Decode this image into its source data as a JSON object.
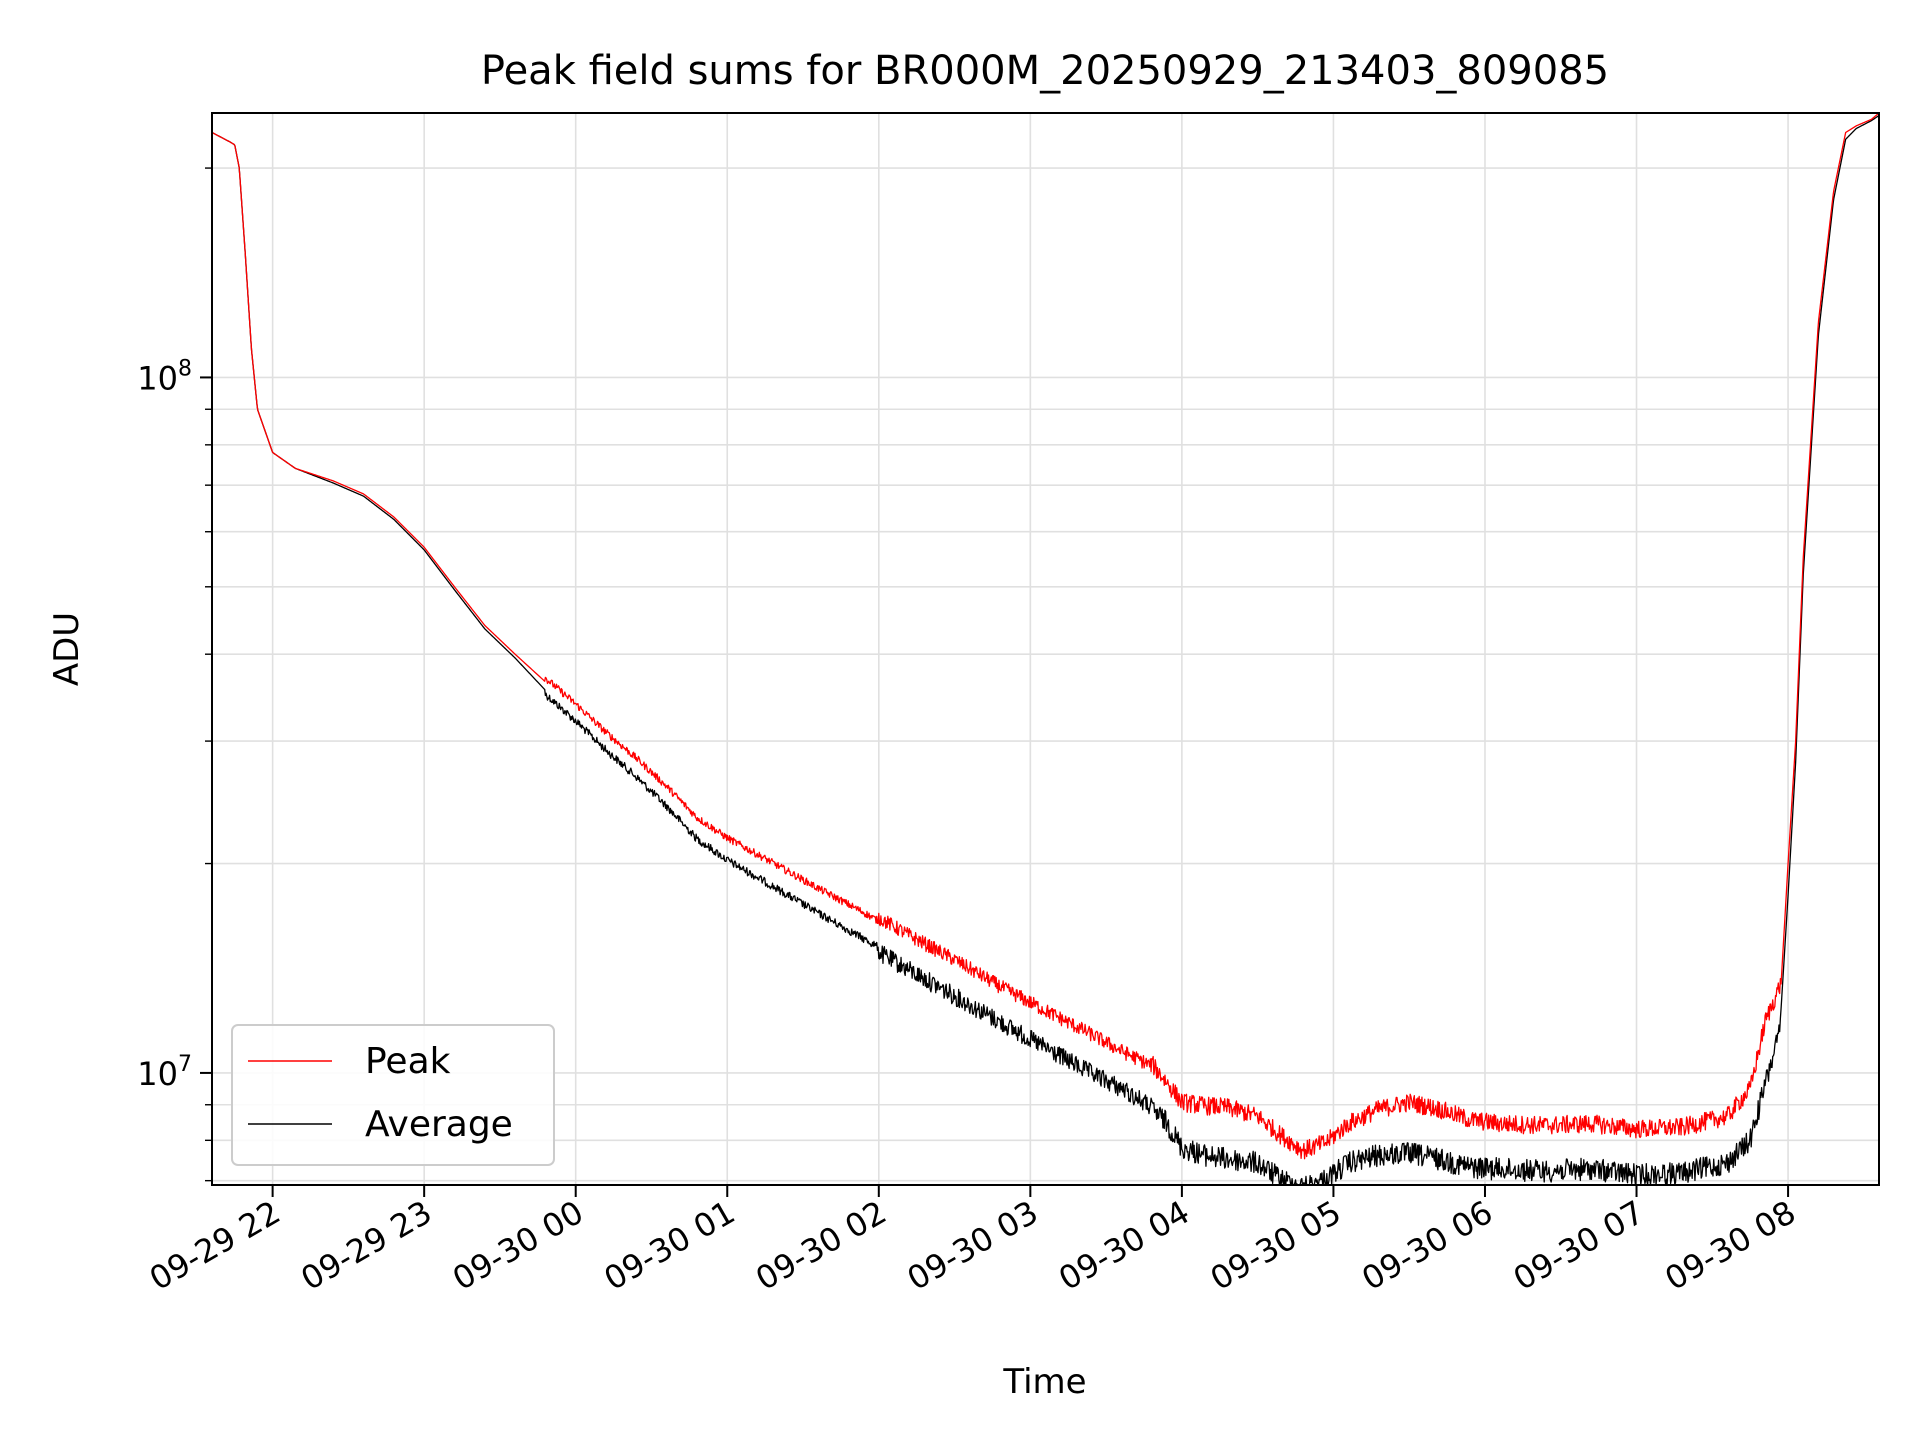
{
  "chart_data": {
    "type": "line",
    "title": "Peak field sums for BR000M_20250929_213403_809085",
    "xlabel": "Time",
    "ylabel": "ADU",
    "yscale": "log",
    "ylim": [
      6900000,
      240000000
    ],
    "xlim_hours": [
      -0.4,
      10.6
    ],
    "grid": true,
    "legend_position": "lower-left",
    "x_ticks": [
      {
        "hour": 0,
        "label": "09-29 22"
      },
      {
        "hour": 1,
        "label": "09-29 23"
      },
      {
        "hour": 2,
        "label": "09-30 00"
      },
      {
        "hour": 3,
        "label": "09-30 01"
      },
      {
        "hour": 4,
        "label": "09-30 02"
      },
      {
        "hour": 5,
        "label": "09-30 03"
      },
      {
        "hour": 6,
        "label": "09-30 04"
      },
      {
        "hour": 7,
        "label": "09-30 05"
      },
      {
        "hour": 8,
        "label": "09-30 06"
      },
      {
        "hour": 9,
        "label": "09-30 07"
      },
      {
        "hour": 10,
        "label": "09-30 08"
      }
    ],
    "y_ticks": [
      {
        "value": 10000000,
        "base": "10",
        "exp": "7"
      },
      {
        "value": 100000000,
        "base": "10",
        "exp": "8"
      }
    ],
    "series": [
      {
        "name": "Peak",
        "color": "#ff0000",
        "x_hours": [
          -0.4,
          -0.28,
          -0.25,
          -0.22,
          -0.18,
          -0.14,
          -0.1,
          0.0,
          0.15,
          0.4,
          0.6,
          0.8,
          1.0,
          1.2,
          1.4,
          1.6,
          1.8,
          2.0,
          2.2,
          2.4,
          2.6,
          2.8,
          3.0,
          3.3,
          3.6,
          3.9,
          4.2,
          4.5,
          4.8,
          5.1,
          5.4,
          5.6,
          5.8,
          5.9,
          6.0,
          6.15,
          6.3,
          6.5,
          6.65,
          6.8,
          6.95,
          7.1,
          7.3,
          7.5,
          7.7,
          7.9,
          8.1,
          8.4,
          8.7,
          9.0,
          9.3,
          9.6,
          9.75,
          9.85,
          9.95,
          10.0,
          10.05,
          10.1,
          10.2,
          10.3,
          10.38,
          10.45,
          10.55,
          10.6
        ],
        "y": [
          225000000,
          218000000,
          216000000,
          200000000,
          150000000,
          110000000,
          90000000,
          78000000,
          74000000,
          71000000,
          68000000,
          63000000,
          57000000,
          50000000,
          44000000,
          40000000,
          36500000,
          33500000,
          30500000,
          28000000,
          25500000,
          23000000,
          21500000,
          19800000,
          18200000,
          16800000,
          15400000,
          14200000,
          13000000,
          12000000,
          11100000,
          10500000,
          10000000,
          9400000,
          8800000,
          8700000,
          8650000,
          8400000,
          7900000,
          7500000,
          7700000,
          8200000,
          8600000,
          8800000,
          8600000,
          8300000,
          8200000,
          8150000,
          8200000,
          8050000,
          8100000,
          8400000,
          9200000,
          11500000,
          13000000,
          20000000,
          30000000,
          55000000,
          120000000,
          185000000,
          225000000,
          230000000,
          235000000,
          240000000
        ]
      },
      {
        "name": "Average",
        "color": "#000000",
        "x_hours": [
          -0.4,
          -0.28,
          -0.25,
          -0.22,
          -0.18,
          -0.14,
          -0.1,
          0.0,
          0.15,
          0.4,
          0.6,
          0.8,
          1.0,
          1.2,
          1.4,
          1.6,
          1.8,
          2.0,
          2.2,
          2.4,
          2.6,
          2.8,
          3.0,
          3.3,
          3.6,
          3.9,
          4.2,
          4.5,
          4.8,
          5.1,
          5.4,
          5.6,
          5.8,
          5.9,
          6.0,
          6.15,
          6.3,
          6.5,
          6.65,
          6.8,
          6.95,
          7.1,
          7.3,
          7.5,
          7.7,
          7.9,
          8.1,
          8.4,
          8.7,
          9.0,
          9.3,
          9.6,
          9.75,
          9.85,
          9.95,
          10.0,
          10.05,
          10.1,
          10.2,
          10.3,
          10.38,
          10.45,
          10.55,
          10.6
        ],
        "y": [
          225000000,
          218000000,
          216000000,
          200000000,
          150000000,
          110000000,
          90000000,
          78000000,
          74000000,
          70500000,
          67500000,
          62500000,
          56500000,
          49500000,
          43500000,
          39500000,
          35500000,
          32500000,
          29500000,
          27000000,
          24500000,
          22000000,
          20500000,
          18800000,
          17200000,
          15800000,
          14500000,
          13300000,
          12200000,
          11200000,
          10300000,
          9800000,
          9200000,
          8800000,
          8100000,
          7900000,
          7800000,
          7700000,
          7300000,
          7100000,
          7300000,
          7700000,
          7900000,
          7950000,
          7800000,
          7600000,
          7550000,
          7500000,
          7550000,
          7400000,
          7450000,
          7700000,
          8300000,
          10000000,
          12000000,
          18000000,
          28000000,
          52000000,
          115000000,
          180000000,
          220000000,
          228000000,
          234000000,
          238000000
        ]
      }
    ]
  }
}
